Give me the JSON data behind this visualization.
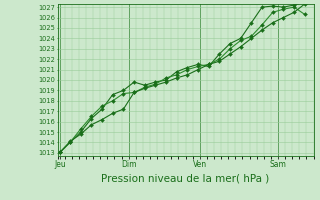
{
  "bg_color": "#cce8cc",
  "plot_bg_color": "#cce8cc",
  "grid_color": "#99cc99",
  "line_color_dark": "#1a6e1a",
  "line_color_mid": "#2d8c2d",
  "line_color_light": "#44aa44",
  "xlabel": "Pression niveau de la mer( hPa )",
  "xlabel_fontsize": 7.5,
  "ytick_min": 1013,
  "ytick_max": 1027,
  "day_labels": [
    "Jeu",
    "Dim",
    "Ven",
    "Sam"
  ],
  "day_positions": [
    0.08,
    2.0,
    4.0,
    6.2
  ],
  "xlim": [
    0.0,
    7.2
  ],
  "series1_x": [
    0.08,
    0.35,
    0.65,
    0.95,
    1.25,
    1.55,
    1.85,
    2.15,
    2.45,
    2.75,
    3.05,
    3.35,
    3.65,
    3.95,
    4.25,
    4.55,
    4.85,
    5.15,
    5.45,
    5.75,
    6.05,
    6.35,
    6.65,
    6.95
  ],
  "series1_y": [
    1013.1,
    1014.0,
    1015.0,
    1016.3,
    1017.2,
    1018.6,
    1019.0,
    1019.8,
    1019.5,
    1019.8,
    1020.0,
    1020.8,
    1021.2,
    1021.5,
    1021.3,
    1022.5,
    1023.5,
    1024.0,
    1025.5,
    1027.0,
    1027.1,
    1027.0,
    1027.2,
    1027.5
  ],
  "series2_x": [
    0.08,
    0.35,
    0.65,
    0.95,
    1.25,
    1.55,
    1.85,
    2.15,
    2.45,
    2.75,
    3.05,
    3.35,
    3.65,
    3.95,
    4.25,
    4.55,
    4.85,
    5.15,
    5.45,
    5.75,
    6.05,
    6.35,
    6.65,
    6.95
  ],
  "series2_y": [
    1013.1,
    1014.0,
    1015.3,
    1016.5,
    1017.5,
    1018.0,
    1018.7,
    1018.8,
    1019.3,
    1019.6,
    1020.2,
    1020.5,
    1021.0,
    1021.3,
    1021.5,
    1022.0,
    1023.0,
    1023.8,
    1024.2,
    1025.3,
    1026.5,
    1026.8,
    1027.0,
    1026.3
  ],
  "series3_x": [
    0.08,
    0.35,
    0.65,
    0.95,
    1.25,
    1.55,
    1.85,
    2.15,
    2.45,
    2.75,
    3.05,
    3.35,
    3.65,
    3.95,
    4.25,
    4.55,
    4.85,
    5.15,
    5.45,
    5.75,
    6.05,
    6.35,
    6.65,
    6.95
  ],
  "series3_y": [
    1013.1,
    1014.1,
    1014.8,
    1015.7,
    1016.2,
    1016.8,
    1017.2,
    1018.8,
    1019.2,
    1019.5,
    1019.8,
    1020.2,
    1020.5,
    1021.0,
    1021.5,
    1021.8,
    1022.5,
    1023.2,
    1024.0,
    1024.8,
    1025.5,
    1026.0,
    1026.5,
    1027.3
  ]
}
